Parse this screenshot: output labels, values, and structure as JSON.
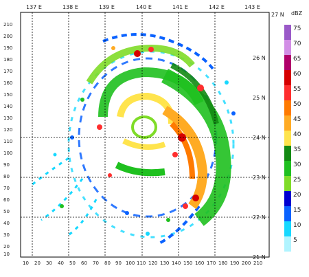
{
  "map": {
    "top_lon_labels": [
      "137 E",
      "138 E",
      "139 E",
      "140 E",
      "141 E",
      "142 E",
      "143 E"
    ],
    "right_lat_labels": [
      "27 N",
      "26 N",
      "25 N",
      "24 N",
      "23 N",
      "22 N",
      "21 N"
    ],
    "x_ticks": [
      "10",
      "20",
      "30",
      "40",
      "50",
      "60",
      "70",
      "80",
      "90",
      "100",
      "110",
      "120",
      "130",
      "140",
      "150",
      "160",
      "170",
      "180",
      "190",
      "200",
      "210"
    ],
    "y_ticks": [
      "210",
      "200",
      "190",
      "180",
      "170",
      "160",
      "150",
      "140",
      "130",
      "120",
      "110",
      "100",
      "90",
      "80",
      "70",
      "60",
      "50",
      "40",
      "30",
      "20",
      "10"
    ]
  },
  "colorbar": {
    "unit": "dBZ",
    "levels": [
      "75",
      "70",
      "65",
      "60",
      "55",
      "50",
      "45",
      "40",
      "35",
      "30",
      "25",
      "20",
      "15",
      "10",
      "5"
    ],
    "colors": [
      "#9a59c8",
      "#d28ee6",
      "#b0006a",
      "#d60000",
      "#ff2e2e",
      "#ff7a00",
      "#ffab24",
      "#ffe44d",
      "#138a13",
      "#1fc01f",
      "#7fdc28",
      "#0000d0",
      "#0a62ff",
      "#16d8ff",
      "#b0f4ff"
    ]
  }
}
